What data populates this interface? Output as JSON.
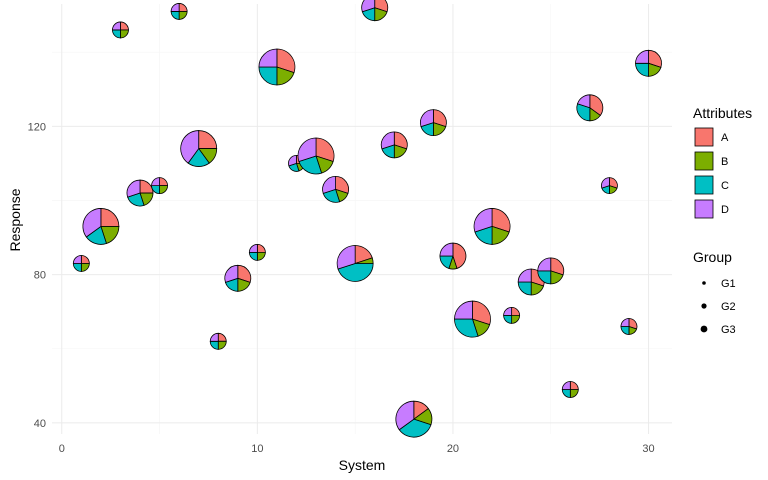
{
  "chart_data": {
    "type": "scatter",
    "subtype": "scatterpie",
    "xlabel": "System",
    "ylabel": "Response",
    "xlim": [
      -0.5,
      31.2
    ],
    "ylim": [
      37,
      153
    ],
    "x_ticks": [
      0,
      10,
      20,
      30
    ],
    "y_ticks": [
      40,
      80,
      120
    ],
    "grid": true,
    "colors": {
      "A": "#F8766D",
      "B": "#7CAE00",
      "C": "#00BFC4",
      "D": "#C77CFF"
    },
    "legend": {
      "placement": "right",
      "attributes_title": "Attributes",
      "attributes": [
        "A",
        "B",
        "C",
        "D"
      ],
      "group_title": "Group",
      "groups": [
        {
          "label": "G1",
          "size": 1
        },
        {
          "label": "G2",
          "size": 2
        },
        {
          "label": "G3",
          "size": 3
        }
      ]
    },
    "points": [
      {
        "x": 1,
        "y": 83,
        "size": 1,
        "slices": [
          0.25,
          0.25,
          0.25,
          0.25
        ]
      },
      {
        "x": 2,
        "y": 93,
        "size": 3,
        "slices": [
          0.25,
          0.2,
          0.2,
          0.35
        ]
      },
      {
        "x": 3,
        "y": 146,
        "size": 1,
        "slices": [
          0.25,
          0.25,
          0.25,
          0.25
        ]
      },
      {
        "x": 4,
        "y": 102,
        "size": 2,
        "slices": [
          0.25,
          0.2,
          0.25,
          0.3
        ]
      },
      {
        "x": 5,
        "y": 104,
        "size": 1,
        "slices": [
          0.25,
          0.25,
          0.25,
          0.25
        ]
      },
      {
        "x": 6,
        "y": 151,
        "size": 1,
        "slices": [
          0.25,
          0.25,
          0.25,
          0.25
        ]
      },
      {
        "x": 7,
        "y": 114,
        "size": 3,
        "slices": [
          0.25,
          0.15,
          0.2,
          0.4
        ]
      },
      {
        "x": 8,
        "y": 62,
        "size": 1,
        "slices": [
          0.25,
          0.25,
          0.25,
          0.25
        ]
      },
      {
        "x": 9,
        "y": 79,
        "size": 2,
        "slices": [
          0.3,
          0.2,
          0.2,
          0.3
        ]
      },
      {
        "x": 10,
        "y": 86,
        "size": 1,
        "slices": [
          0.25,
          0.25,
          0.25,
          0.25
        ]
      },
      {
        "x": 11,
        "y": 136,
        "size": 3,
        "slices": [
          0.3,
          0.2,
          0.25,
          0.25
        ]
      },
      {
        "x": 12,
        "y": 110,
        "size": 1,
        "slices": [
          0.25,
          0.2,
          0.25,
          0.3
        ]
      },
      {
        "x": 13,
        "y": 112,
        "size": 3,
        "slices": [
          0.3,
          0.15,
          0.25,
          0.3
        ]
      },
      {
        "x": 14,
        "y": 103,
        "size": 2,
        "slices": [
          0.3,
          0.15,
          0.25,
          0.3
        ]
      },
      {
        "x": 15,
        "y": 83,
        "size": 3,
        "slices": [
          0.2,
          0.05,
          0.45,
          0.3
        ]
      },
      {
        "x": 16,
        "y": 152,
        "size": 2,
        "slices": [
          0.3,
          0.2,
          0.2,
          0.3
        ]
      },
      {
        "x": 17,
        "y": 115,
        "size": 2,
        "slices": [
          0.3,
          0.2,
          0.2,
          0.3
        ]
      },
      {
        "x": 18,
        "y": 41,
        "size": 3,
        "slices": [
          0.15,
          0.15,
          0.35,
          0.35
        ]
      },
      {
        "x": 19,
        "y": 121,
        "size": 2,
        "slices": [
          0.3,
          0.2,
          0.2,
          0.3
        ]
      },
      {
        "x": 20,
        "y": 85,
        "size": 2,
        "slices": [
          0.45,
          0.1,
          0.2,
          0.25
        ]
      },
      {
        "x": 21,
        "y": 68,
        "size": 3,
        "slices": [
          0.3,
          0.15,
          0.3,
          0.25
        ]
      },
      {
        "x": 22,
        "y": 93,
        "size": 3,
        "slices": [
          0.3,
          0.2,
          0.2,
          0.3
        ]
      },
      {
        "x": 23,
        "y": 69,
        "size": 1,
        "slices": [
          0.25,
          0.25,
          0.25,
          0.25
        ]
      },
      {
        "x": 24,
        "y": 78,
        "size": 2,
        "slices": [
          0.3,
          0.2,
          0.25,
          0.25
        ]
      },
      {
        "x": 25,
        "y": 81,
        "size": 2,
        "slices": [
          0.3,
          0.2,
          0.25,
          0.25
        ]
      },
      {
        "x": 26,
        "y": 49,
        "size": 1,
        "slices": [
          0.25,
          0.25,
          0.25,
          0.25
        ]
      },
      {
        "x": 27,
        "y": 125,
        "size": 2,
        "slices": [
          0.35,
          0.15,
          0.3,
          0.2
        ]
      },
      {
        "x": 28,
        "y": 104,
        "size": 1,
        "slices": [
          0.3,
          0.2,
          0.2,
          0.3
        ]
      },
      {
        "x": 29,
        "y": 66,
        "size": 1,
        "slices": [
          0.3,
          0.2,
          0.25,
          0.25
        ]
      },
      {
        "x": 30,
        "y": 137,
        "size": 2,
        "slices": [
          0.3,
          0.2,
          0.25,
          0.25
        ]
      }
    ]
  }
}
